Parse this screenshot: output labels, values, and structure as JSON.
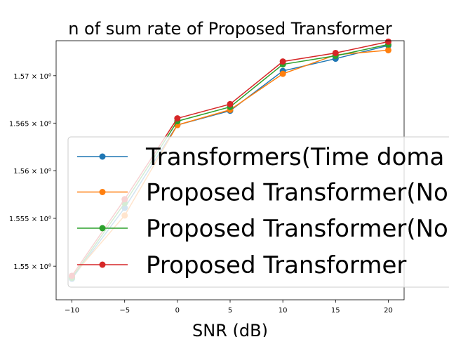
{
  "chart_data": {
    "type": "line",
    "title": "n of sum rate of Proposed Transformer",
    "xlabel": "SNR (dB)",
    "ylabel": "",
    "x": [
      -10,
      -5,
      0,
      5,
      10,
      15,
      20
    ],
    "xticks": [
      "−10",
      "−5",
      "0",
      "5",
      "10",
      "15",
      "20"
    ],
    "xlim": [
      -11.5,
      21.5
    ],
    "ylim": [
      1.5465,
      1.5737
    ],
    "yticks": [
      {
        "value": 1.55,
        "label": "1.55 × 10⁰"
      },
      {
        "value": 1.555,
        "label": "1.555 × 10⁰"
      },
      {
        "value": 1.56,
        "label": "1.56 × 10⁰"
      },
      {
        "value": 1.565,
        "label": "1.565 × 10⁰"
      },
      {
        "value": 1.57,
        "label": "1.57 × 10⁰"
      }
    ],
    "yscale": "log",
    "grid": false,
    "legend_position": "center-right",
    "series": [
      {
        "name": "Transformers(Time doma",
        "color": "#1f77b4",
        "values": [
          1.5487,
          1.5561,
          1.5648,
          1.5663,
          1.5705,
          1.5718,
          1.5732
        ]
      },
      {
        "name": "Proposed Transformer(No",
        "color": "#ff7f0e",
        "values": [
          1.5489,
          1.5553,
          1.5648,
          1.5664,
          1.5702,
          1.5722,
          1.5727
        ]
      },
      {
        "name": "Proposed Transformer(No",
        "color": "#2ca02c",
        "values": [
          1.5488,
          1.5566,
          1.5652,
          1.5667,
          1.5712,
          1.5721,
          1.5733
        ]
      },
      {
        "name": "Proposed Transformer",
        "color": "#d62728",
        "values": [
          1.549,
          1.557,
          1.5655,
          1.567,
          1.5715,
          1.5724,
          1.5736
        ]
      }
    ]
  }
}
